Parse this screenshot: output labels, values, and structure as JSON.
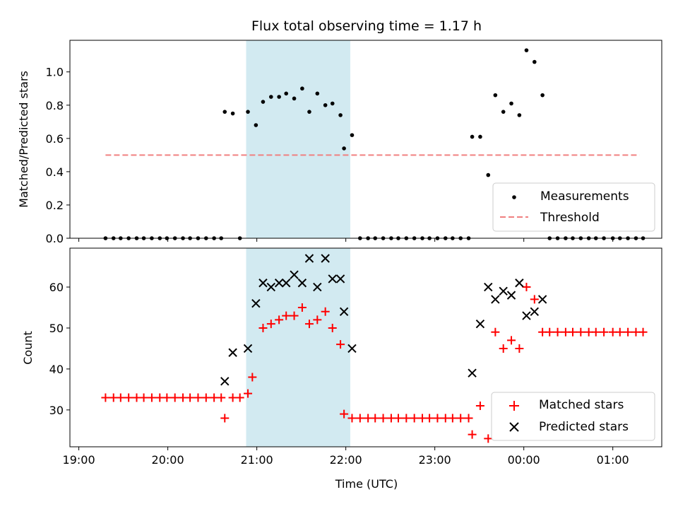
{
  "chart_data": [
    {
      "type": "scatter",
      "title": "Flux total observing time = 1.17 h",
      "xlabel": "",
      "ylabel": "Matched/Predicted stars",
      "xlim": [
        -0.1,
        6.55
      ],
      "ylim": [
        0,
        1.19
      ],
      "yticks": [
        0,
        0.2,
        0.4,
        0.6,
        0.8,
        1.0
      ],
      "ytick_labels": [
        "0.0",
        "0.2",
        "0.4",
        "0.6",
        "0.8",
        "1.0"
      ],
      "shaded_region": {
        "x_start": 1.88,
        "x_end": 3.05,
        "color": "#add8e6"
      },
      "legend": {
        "placement": "lower-right",
        "entries": [
          "Measurements",
          "Threshold"
        ]
      },
      "series": [
        {
          "name": "Measurements",
          "color": "#000000",
          "marker": "dot",
          "x": [
            0.3,
            0.39,
            0.47,
            0.56,
            0.65,
            0.73,
            0.82,
            0.91,
            0.99,
            1.08,
            1.17,
            1.25,
            1.34,
            1.43,
            1.52,
            1.6,
            1.64,
            1.73,
            1.81,
            1.9,
            1.99,
            2.07,
            2.16,
            2.25,
            2.33,
            2.42,
            2.51,
            2.59,
            2.68,
            2.77,
            2.85,
            2.94,
            2.98,
            3.07,
            3.16,
            3.25,
            3.33,
            3.42,
            3.51,
            3.59,
            3.68,
            3.77,
            3.86,
            3.94,
            4.03,
            4.12,
            4.2,
            4.29,
            4.38,
            4.42,
            4.51,
            4.6,
            4.68,
            4.77,
            4.86,
            4.95,
            5.03,
            5.12,
            5.21,
            5.29,
            5.38,
            5.47,
            5.55,
            5.64,
            5.73,
            5.81,
            5.9,
            6.0,
            6.08,
            6.17,
            6.26,
            6.34
          ],
          "y": [
            0,
            0,
            0,
            0,
            0,
            0,
            0,
            0,
            0,
            0,
            0,
            0,
            0,
            0,
            0,
            0,
            0.76,
            0.75,
            0,
            0.76,
            0.68,
            0.82,
            0.85,
            0.85,
            0.87,
            0.84,
            0.9,
            0.76,
            0.87,
            0.8,
            0.81,
            0.74,
            0.54,
            0.62,
            0,
            0,
            0,
            0,
            0,
            0,
            0,
            0,
            0,
            0,
            0,
            0,
            0,
            0,
            0,
            0.61,
            0.61,
            0.38,
            0.86,
            0.76,
            0.81,
            0.74,
            1.13,
            1.06,
            0.86,
            0,
            0,
            0,
            0,
            0,
            0,
            0,
            0,
            0,
            0,
            0,
            0,
            0
          ]
        },
        {
          "name": "Threshold",
          "color": "#f08080",
          "line_style": "dashed",
          "x": [
            0.3,
            6.3
          ],
          "y": [
            0.5,
            0.5
          ]
        }
      ]
    },
    {
      "type": "scatter",
      "title": "",
      "xlabel": "Time (UTC)",
      "ylabel": "Count",
      "xlim": [
        -0.1,
        6.55
      ],
      "ylim": [
        21,
        69.5
      ],
      "yticks": [
        30,
        40,
        50,
        60
      ],
      "xticks": [
        0,
        1,
        2,
        3,
        4,
        5,
        6
      ],
      "xtick_labels": [
        "19:00",
        "20:00",
        "21:00",
        "22:00",
        "23:00",
        "00:00",
        "01:00"
      ],
      "shaded_region": {
        "x_start": 1.88,
        "x_end": 3.05,
        "color": "#add8e6"
      },
      "legend": {
        "placement": "lower-right",
        "entries": [
          "Matched stars",
          "Predicted stars"
        ]
      },
      "series": [
        {
          "name": "Matched stars",
          "color": "#ff0000",
          "marker": "plus",
          "x": [
            0.3,
            0.39,
            0.47,
            0.56,
            0.65,
            0.73,
            0.82,
            0.91,
            0.99,
            1.08,
            1.17,
            1.25,
            1.34,
            1.43,
            1.52,
            1.6,
            1.64,
            1.73,
            1.81,
            1.9,
            1.95,
            2.07,
            2.16,
            2.25,
            2.33,
            2.42,
            2.51,
            2.59,
            2.68,
            2.77,
            2.85,
            2.94,
            2.98,
            3.07,
            3.16,
            3.25,
            3.33,
            3.42,
            3.51,
            3.59,
            3.68,
            3.77,
            3.86,
            3.94,
            4.03,
            4.12,
            4.2,
            4.29,
            4.38,
            4.42,
            4.51,
            4.6,
            4.68,
            4.77,
            4.86,
            4.95,
            5.03,
            5.12,
            5.21,
            5.29,
            5.38,
            5.47,
            5.55,
            5.64,
            5.73,
            5.81,
            5.9,
            6.0,
            6.08,
            6.17,
            6.26,
            6.34
          ],
          "y": [
            33,
            33,
            33,
            33,
            33,
            33,
            33,
            33,
            33,
            33,
            33,
            33,
            33,
            33,
            33,
            33,
            28,
            33,
            33,
            34,
            38,
            50,
            51,
            52,
            53,
            53,
            55,
            51,
            52,
            54,
            50,
            46,
            29,
            28,
            28,
            28,
            28,
            28,
            28,
            28,
            28,
            28,
            28,
            28,
            28,
            28,
            28,
            28,
            28,
            24,
            31,
            23,
            49,
            45,
            47,
            45,
            60,
            57,
            49,
            49,
            49,
            49,
            49,
            49,
            49,
            49,
            49,
            49,
            49,
            49,
            49,
            49
          ]
        },
        {
          "name": "Predicted stars",
          "color": "#000000",
          "marker": "x",
          "x": [
            1.64,
            1.73,
            1.9,
            1.99,
            2.07,
            2.16,
            2.25,
            2.33,
            2.42,
            2.51,
            2.59,
            2.68,
            2.77,
            2.85,
            2.94,
            2.98,
            3.07,
            4.42,
            4.51,
            4.6,
            4.68,
            4.77,
            4.86,
            4.95,
            5.03,
            5.12,
            5.21
          ],
          "y": [
            37,
            44,
            45,
            56,
            61,
            60,
            61,
            61,
            63,
            61,
            67,
            60,
            67,
            62,
            62,
            54,
            45,
            39,
            51,
            60,
            57,
            59,
            58,
            61,
            53,
            54,
            57
          ]
        }
      ]
    }
  ]
}
